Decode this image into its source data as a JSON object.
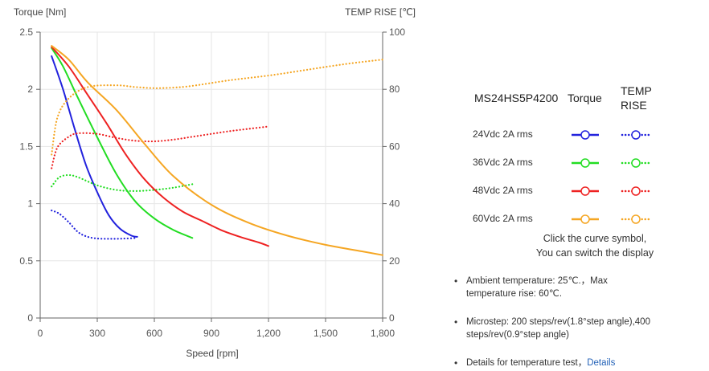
{
  "chart_data": {
    "type": "line",
    "title": "",
    "xlabel": "Speed [rpm]",
    "ylabel": "Torque  [Nm]",
    "y2label": "TEMP RISE [℃]",
    "xlim": [
      0,
      1800
    ],
    "ylim": [
      0,
      2.5
    ],
    "y2lim": [
      0,
      100
    ],
    "xticks": [
      0,
      300,
      600,
      900,
      1200,
      1500,
      1800
    ],
    "xtick_labels": [
      "0",
      "300",
      "600",
      "900",
      "1,200",
      "1,500",
      "1,800"
    ],
    "yticks": [
      0,
      0.5,
      1,
      1.5,
      2,
      2.5
    ],
    "ytick_labels": [
      "0",
      "0.5",
      "1",
      "1.5",
      "2",
      "2.5"
    ],
    "y2ticks": [
      0,
      20,
      40,
      60,
      80,
      100
    ],
    "y2tick_labels": [
      "0",
      "20",
      "40",
      "60",
      "80",
      "100"
    ],
    "grid": true,
    "series": [
      {
        "name": "24Vdc 2A rms Torque",
        "axis": "left",
        "style": "solid",
        "color": "#2222dd",
        "x": [
          60,
          120,
          180,
          240,
          300,
          360,
          420,
          480,
          510
        ],
        "y": [
          2.29,
          2.0,
          1.66,
          1.34,
          1.1,
          0.9,
          0.78,
          0.72,
          0.71
        ]
      },
      {
        "name": "24Vdc 2A rms TEMP RISE",
        "axis": "right",
        "style": "dotted",
        "color": "#2222dd",
        "x": [
          60,
          100,
          150,
          200,
          250,
          300,
          350,
          400,
          450,
          510
        ],
        "y": [
          37.6,
          36.5,
          33.5,
          30.0,
          28.4,
          27.8,
          27.7,
          27.7,
          27.8,
          28.0
        ]
      },
      {
        "name": "36Vdc 2A rms Torque",
        "axis": "left",
        "style": "solid",
        "color": "#22dd22",
        "x": [
          60,
          120,
          200,
          300,
          400,
          500,
          600,
          700,
          800
        ],
        "y": [
          2.36,
          2.2,
          1.92,
          1.58,
          1.26,
          1.02,
          0.87,
          0.77,
          0.7
        ]
      },
      {
        "name": "36Vdc 2A rms TEMP RISE",
        "axis": "right",
        "style": "dotted",
        "color": "#22dd22",
        "x": [
          60,
          100,
          150,
          200,
          300,
          400,
          500,
          600,
          700,
          800
        ],
        "y": [
          46.0,
          49.2,
          50.0,
          49.2,
          46.4,
          44.8,
          44.4,
          44.8,
          45.6,
          46.8
        ]
      },
      {
        "name": "48Vdc 2A rms Torque",
        "axis": "left",
        "style": "solid",
        "color": "#ee2222",
        "x": [
          60,
          150,
          250,
          350,
          450,
          550,
          650,
          750,
          850,
          950,
          1050,
          1150,
          1200
        ],
        "y": [
          2.37,
          2.2,
          1.95,
          1.7,
          1.43,
          1.21,
          1.05,
          0.93,
          0.85,
          0.77,
          0.71,
          0.66,
          0.63
        ]
      },
      {
        "name": "48Vdc 2A rms TEMP RISE",
        "axis": "right",
        "style": "dotted",
        "color": "#ee2222",
        "x": [
          60,
          90,
          150,
          200,
          300,
          400,
          500,
          600,
          700,
          800,
          900,
          1000,
          1100,
          1200
        ],
        "y": [
          52.4,
          59.6,
          63.4,
          64.6,
          64.4,
          63.0,
          62.0,
          61.8,
          62.4,
          63.4,
          64.4,
          65.4,
          66.2,
          67.0
        ]
      },
      {
        "name": "60Vdc 2A rms Torque",
        "axis": "left",
        "style": "solid",
        "color": "#f5a623",
        "x": [
          60,
          150,
          250,
          400,
          550,
          700,
          900,
          1100,
          1300,
          1500,
          1700,
          1800
        ],
        "y": [
          2.38,
          2.26,
          2.06,
          1.82,
          1.52,
          1.24,
          0.99,
          0.83,
          0.72,
          0.64,
          0.58,
          0.55
        ]
      },
      {
        "name": "60Vdc 2A rms TEMP RISE",
        "axis": "right",
        "style": "dotted",
        "color": "#f5a623",
        "x": [
          60,
          90,
          150,
          250,
          400,
          500,
          600,
          700,
          800,
          1000,
          1200,
          1400,
          1600,
          1800
        ],
        "y": [
          57.2,
          70.0,
          76.8,
          80.8,
          81.4,
          80.8,
          80.4,
          80.6,
          81.2,
          83.2,
          84.8,
          86.8,
          88.8,
          90.4
        ]
      }
    ]
  },
  "legend": {
    "model": "MS24HS5P4200",
    "torque_header": "Torque",
    "temp_header_line1": "TEMP",
    "temp_header_line2": "RISE",
    "rows": [
      {
        "label": "24Vdc   2A rms",
        "color": "#2222dd"
      },
      {
        "label": "36Vdc   2A rms",
        "color": "#22dd22"
      },
      {
        "label": "48Vdc   2A rms",
        "color": "#ee2222"
      },
      {
        "label": "60Vdc   2A rms",
        "color": "#f5a623"
      }
    ],
    "hint_line1": "Click the curve symbol,",
    "hint_line2": "You can switch the display"
  },
  "notes": {
    "ambient": "Ambient temperature: 25℃.，Max temperature rise: 60℃.",
    "microstep": "Microstep: 200 steps/rev(1.8°step angle),400 steps/rev(0.9°step angle)",
    "details_prefix": "Details for temperature test，",
    "details_link": "Details"
  }
}
